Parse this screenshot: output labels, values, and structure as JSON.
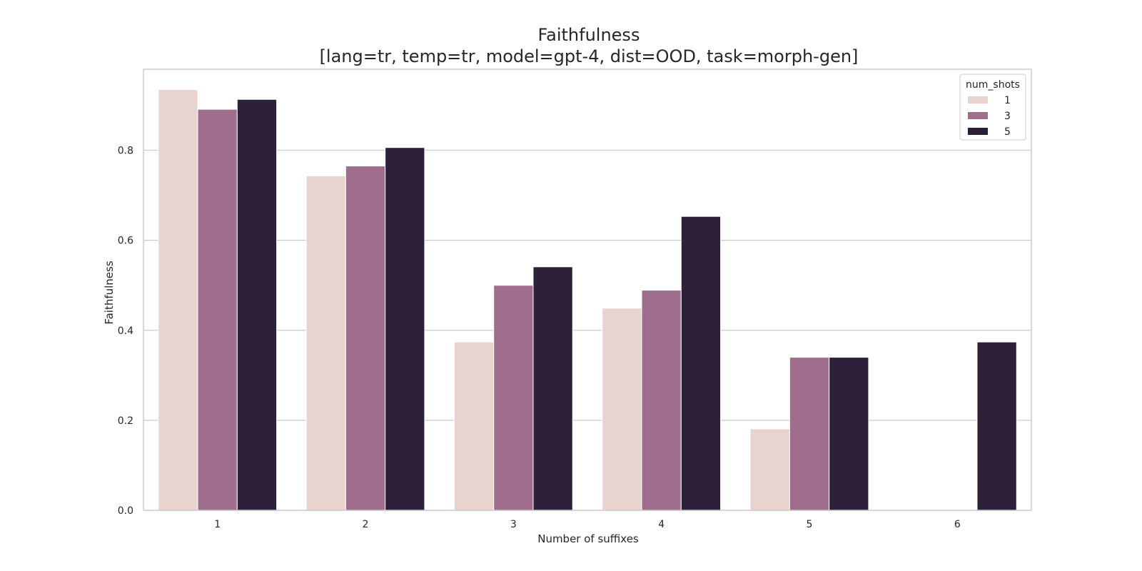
{
  "chart_data": {
    "type": "bar",
    "title": "Faithfulness",
    "subtitle": "[lang=tr, temp=tr, model=gpt-4, dist=OOD, task=morph-gen]",
    "xlabel": "Number of suffixes",
    "ylabel": "Faithfulness",
    "categories": [
      "1",
      "2",
      "3",
      "4",
      "5",
      "6"
    ],
    "yticks": [
      "0.0",
      "0.2",
      "0.4",
      "0.6",
      "0.8"
    ],
    "ylim": [
      0,
      0.98
    ],
    "grid": true,
    "legend": {
      "title": "num_shots",
      "placement": "top-right"
    },
    "series": [
      {
        "name": "1",
        "color": "#e8d3cf",
        "values": [
          0.935,
          0.743,
          0.374,
          0.449,
          0.181,
          0.0
        ]
      },
      {
        "name": "3",
        "color": "#a06e8d",
        "values": [
          0.891,
          0.765,
          0.5,
          0.489,
          0.34,
          0.0
        ]
      },
      {
        "name": "5",
        "color": "#2d2039",
        "values": [
          0.913,
          0.806,
          0.541,
          0.653,
          0.34,
          0.374
        ]
      }
    ]
  }
}
